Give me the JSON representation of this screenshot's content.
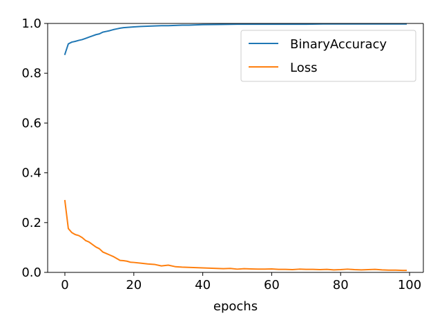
{
  "chart_data": {
    "type": "line",
    "title": "",
    "xlabel": "epochs",
    "ylabel": "",
    "xlim": [
      -5,
      104
    ],
    "ylim": [
      0.0,
      1.0
    ],
    "xticks": [
      0,
      20,
      40,
      60,
      80,
      100
    ],
    "yticks": [
      0.0,
      0.2,
      0.4,
      0.6,
      0.8,
      1.0
    ],
    "xtick_labels": [
      "0",
      "20",
      "40",
      "60",
      "80",
      "100"
    ],
    "ytick_labels": [
      "0.0",
      "0.2",
      "0.4",
      "0.6",
      "0.8",
      "1.0"
    ],
    "grid": false,
    "legend_position": "top-right",
    "series": [
      {
        "name": "BinaryAccuracy",
        "color": "#1f77b4",
        "x": [
          0,
          1,
          2,
          3,
          4,
          5,
          6,
          7,
          8,
          9,
          10,
          11,
          12,
          13,
          14,
          15,
          16,
          17,
          18,
          19,
          20,
          22,
          24,
          26,
          28,
          30,
          32,
          34,
          36,
          38,
          40,
          45,
          50,
          55,
          60,
          65,
          70,
          75,
          80,
          85,
          90,
          95,
          99
        ],
        "y": [
          0.876,
          0.918,
          0.925,
          0.928,
          0.932,
          0.935,
          0.94,
          0.945,
          0.95,
          0.955,
          0.958,
          0.965,
          0.968,
          0.971,
          0.975,
          0.978,
          0.981,
          0.983,
          0.984,
          0.985,
          0.986,
          0.988,
          0.989,
          0.99,
          0.991,
          0.991,
          0.992,
          0.993,
          0.993,
          0.994,
          0.995,
          0.996,
          0.997,
          0.997,
          0.997,
          0.997,
          0.997,
          0.998,
          0.998,
          0.998,
          0.998,
          0.998,
          0.998
        ]
      },
      {
        "name": "Loss",
        "color": "#ff7f0e",
        "x": [
          0,
          1,
          2,
          3,
          4,
          5,
          6,
          7,
          8,
          9,
          10,
          11,
          12,
          13,
          14,
          15,
          16,
          17,
          18,
          19,
          20,
          22,
          24,
          26,
          28,
          30,
          32,
          34,
          36,
          38,
          40,
          42,
          44,
          46,
          48,
          50,
          52,
          54,
          56,
          58,
          60,
          62,
          64,
          66,
          68,
          70,
          72,
          74,
          76,
          78,
          80,
          82,
          84,
          86,
          88,
          90,
          92,
          94,
          96,
          98,
          99
        ],
        "y": [
          0.288,
          0.176,
          0.16,
          0.152,
          0.148,
          0.14,
          0.128,
          0.122,
          0.112,
          0.102,
          0.095,
          0.082,
          0.076,
          0.07,
          0.064,
          0.056,
          0.048,
          0.047,
          0.045,
          0.041,
          0.04,
          0.037,
          0.034,
          0.032,
          0.026,
          0.029,
          0.023,
          0.021,
          0.02,
          0.019,
          0.018,
          0.017,
          0.016,
          0.015,
          0.016,
          0.013,
          0.015,
          0.014,
          0.013,
          0.013,
          0.014,
          0.012,
          0.012,
          0.011,
          0.013,
          0.012,
          0.012,
          0.011,
          0.012,
          0.01,
          0.011,
          0.013,
          0.011,
          0.01,
          0.011,
          0.012,
          0.01,
          0.009,
          0.009,
          0.008,
          0.008
        ]
      }
    ]
  }
}
